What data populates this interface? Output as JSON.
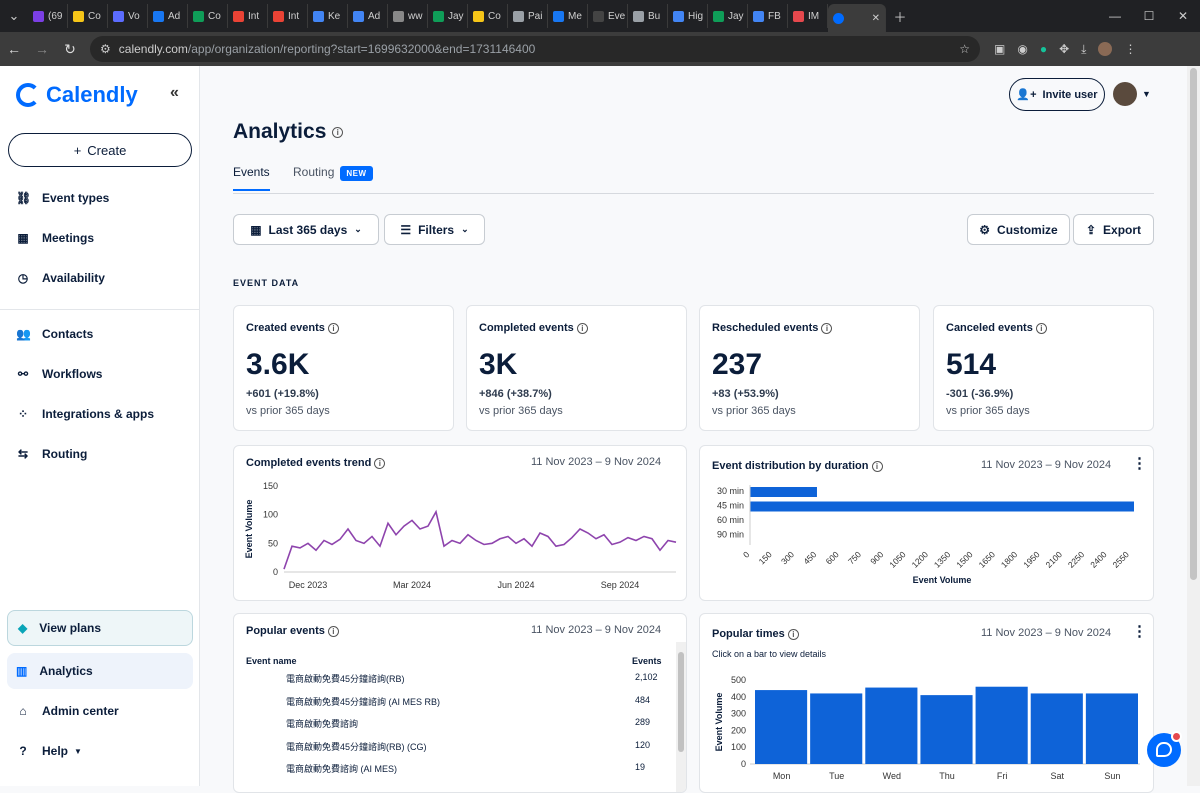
{
  "browser": {
    "tabs": [
      {
        "label": "(69",
        "color": "#7b3fe4"
      },
      {
        "label": "Co",
        "color": "#f5c518"
      },
      {
        "label": "Vo",
        "color": "#5b6cff"
      },
      {
        "label": "Ad",
        "color": "#1877f2"
      },
      {
        "label": "Co",
        "color": "#0f9d58"
      },
      {
        "label": "Int",
        "color": "#ea4335"
      },
      {
        "label": "Int",
        "color": "#ea4335"
      },
      {
        "label": "Ke",
        "color": "#4285f4"
      },
      {
        "label": "Ad",
        "color": "#4285f4"
      },
      {
        "label": "ww",
        "color": "#888888"
      },
      {
        "label": "Jay",
        "color": "#0f9d58"
      },
      {
        "label": "Co",
        "color": "#f5c518"
      },
      {
        "label": "Pai",
        "color": "#9aa0a6"
      },
      {
        "label": "Me",
        "color": "#1877f2"
      },
      {
        "label": "Eve",
        "color": "#444444"
      },
      {
        "label": "Bu",
        "color": "#9aa0a6"
      },
      {
        "label": "Hig",
        "color": "#4285f4"
      },
      {
        "label": "Jay",
        "color": "#0f9d58"
      },
      {
        "label": "FB",
        "color": "#4285f4"
      },
      {
        "label": "IM",
        "color": "#e5484d"
      }
    ],
    "url_host": "calendly.com",
    "url_path": "/app/organization/reporting?start=1699632000&end=1731146400"
  },
  "sidebar": {
    "brand": "Calendly",
    "create_label": "Create",
    "items_top": [
      {
        "label": "Event types",
        "icon": "link-icon",
        "glyph": "⛓"
      },
      {
        "label": "Meetings",
        "icon": "calendar-icon",
        "glyph": "▦"
      },
      {
        "label": "Availability",
        "icon": "clock-icon",
        "glyph": "◷"
      }
    ],
    "items_mid": [
      {
        "label": "Contacts",
        "icon": "contacts-icon",
        "glyph": "👥"
      },
      {
        "label": "Workflows",
        "icon": "workflow-icon",
        "glyph": "⚯"
      },
      {
        "label": "Integrations & apps",
        "icon": "apps-icon",
        "glyph": "⁘"
      },
      {
        "label": "Routing",
        "icon": "routing-icon",
        "glyph": "⇆"
      }
    ],
    "view_plans": "View plans",
    "analytics": "Analytics",
    "admin_center": "Admin center",
    "help": "Help"
  },
  "header": {
    "invite_label": "Invite user",
    "title": "Analytics",
    "tabs": [
      "Events",
      "Routing"
    ],
    "new_badge": "NEW"
  },
  "toolbar": {
    "range_label": "Last 365 days",
    "filters_label": "Filters",
    "customize_label": "Customize",
    "export_label": "Export"
  },
  "section_label": "EVENT DATA",
  "stats": [
    {
      "label": "Created events",
      "value": "3.6K",
      "delta": "+601 (+19.8%)",
      "vs": "vs prior 365 days"
    },
    {
      "label": "Completed events",
      "value": "3K",
      "delta": "+846 (+38.7%)",
      "vs": "vs prior 365 days"
    },
    {
      "label": "Rescheduled events",
      "value": "237",
      "delta": "+83 (+53.9%)",
      "vs": "vs prior 365 days"
    },
    {
      "label": "Canceled events",
      "value": "514",
      "delta": "-301 (-36.9%)",
      "vs": "vs prior 365 days"
    }
  ],
  "date_range": "11 Nov 2023 – 9 Nov 2024",
  "cards": {
    "trend_title": "Completed events trend",
    "dist_title": "Event distribution by duration",
    "popular_title": "Popular events",
    "times_title": "Popular times",
    "times_subtitle": "Click on a bar to view details"
  },
  "popular_events": {
    "col_name": "Event name",
    "col_count": "Events",
    "rows": [
      {
        "name": "電商啟動免費45分鐘諮詢(RB)",
        "count": "2,102"
      },
      {
        "name": "電商啟動免費45分鐘諮詢 (AI MES RB)",
        "count": "484"
      },
      {
        "name": "電商啟動免費諮詢",
        "count": "289"
      },
      {
        "name": "電商啟動免費45分鐘諮詢(RB) (CG)",
        "count": "120"
      },
      {
        "name": "電商啟動免費諮詢 (AI MES)",
        "count": "19"
      }
    ]
  },
  "chart_data": [
    {
      "type": "line",
      "title": "Completed events trend",
      "ylabel": "Event Volume",
      "ylim": [
        0,
        150
      ],
      "yticks": [
        0,
        50,
        100,
        150
      ],
      "xticks": [
        "Dec 2023",
        "Mar 2024",
        "Jun 2024",
        "Sep 2024"
      ],
      "xtick_index": [
        3,
        16,
        29,
        42
      ],
      "color": "#8e44ad",
      "values": [
        5,
        45,
        42,
        50,
        38,
        55,
        48,
        57,
        75,
        55,
        50,
        62,
        45,
        85,
        65,
        80,
        90,
        75,
        80,
        105,
        45,
        55,
        50,
        65,
        55,
        48,
        50,
        58,
        62,
        50,
        58,
        45,
        68,
        62,
        45,
        48,
        60,
        75,
        68,
        58,
        65,
        48,
        52,
        60,
        55,
        62,
        58,
        38,
        55,
        52
      ]
    },
    {
      "type": "bar",
      "orientation": "horizontal",
      "title": "Event distribution by duration",
      "xlabel": "Event Volume",
      "categories": [
        "30 min",
        "45 min",
        "60 min",
        "90 min"
      ],
      "values": [
        450,
        2580,
        0,
        0
      ],
      "xlim": [
        0,
        2580
      ],
      "xticks": [
        0,
        150,
        300,
        450,
        600,
        750,
        900,
        1050,
        1200,
        1350,
        1500,
        1650,
        1800,
        1950,
        2100,
        2250,
        2400,
        2550
      ],
      "color": "#0e63d8"
    },
    {
      "type": "bar",
      "title": "Popular times",
      "ylabel": "Event Volume",
      "categories": [
        "Mon",
        "Tue",
        "Wed",
        "Thu",
        "Fri",
        "Sat",
        "Sun"
      ],
      "values": [
        440,
        420,
        455,
        410,
        460,
        420,
        420
      ],
      "ylim": [
        0,
        500
      ],
      "yticks": [
        0,
        100,
        200,
        300,
        400,
        500
      ],
      "color": "#0e63d8"
    }
  ]
}
